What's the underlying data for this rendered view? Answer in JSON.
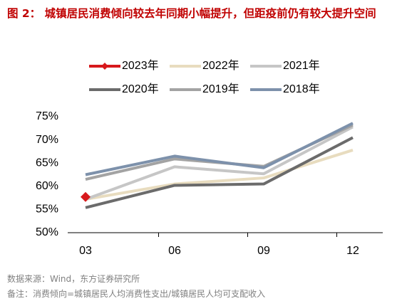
{
  "chart_data": {
    "type": "line",
    "title": "图 2： 城镇居民消费倾向较去年同期小幅提升，但距疫前仍有较大提升空间",
    "categories": [
      "03",
      "06",
      "09",
      "12"
    ],
    "series": [
      {
        "name": "2023年",
        "color": "#d7191c",
        "marker": "diamond",
        "values": [
          57.7,
          null,
          null,
          null
        ]
      },
      {
        "name": "2022年",
        "color": "#e8dcbf",
        "values": [
          57.2,
          60.5,
          61.8,
          67.8
        ]
      },
      {
        "name": "2021年",
        "color": "#c6c6c6",
        "values": [
          57.2,
          64.2,
          62.7,
          72.8
        ]
      },
      {
        "name": "2020年",
        "color": "#6b6b6b",
        "values": [
          55.4,
          60.2,
          60.5,
          70.5
        ]
      },
      {
        "name": "2019年",
        "color": "#a3a3a3",
        "values": [
          61.5,
          65.9,
          64.3,
          73.2
        ]
      },
      {
        "name": "2018年",
        "color": "#7d91ab",
        "values": [
          62.5,
          66.5,
          64.0,
          73.6
        ]
      }
    ],
    "ylim": [
      50,
      75
    ],
    "yticks": [
      {
        "value": 50,
        "label": "50%"
      },
      {
        "value": 55,
        "label": "55%"
      },
      {
        "value": 60,
        "label": "60%"
      },
      {
        "value": 65,
        "label": "65%"
      },
      {
        "value": 70,
        "label": "70%"
      },
      {
        "value": 75,
        "label": "75%"
      }
    ],
    "legend": "top",
    "source": "数据来源：Wind，东方证券研究所",
    "note": "备注：消费倾向=城镇居民人均消费性支出/城镇居民人均可支配收入"
  }
}
